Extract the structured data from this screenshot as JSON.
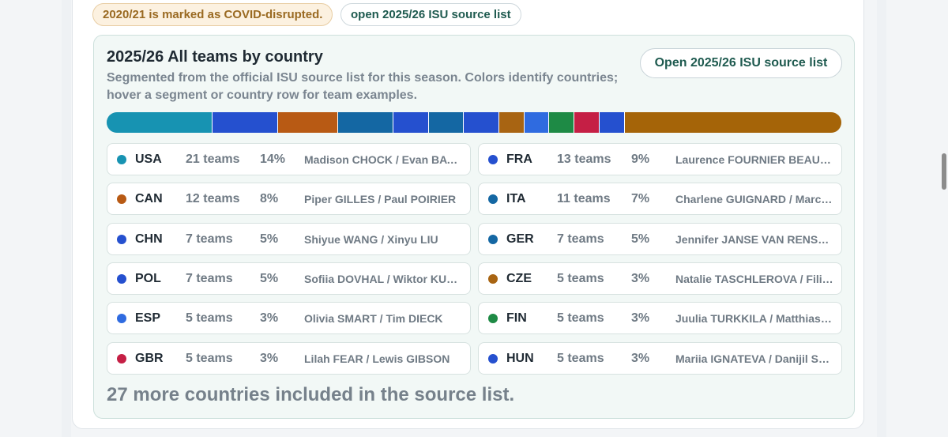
{
  "chips": {
    "covid_note": "2020/21 is marked as COVID-disrupted.",
    "source_link": "open 2025/26 ISU source list"
  },
  "panel": {
    "title": "2025/26 All teams by country",
    "subtitle": "Segmented from the official ISU source list for this season. Colors identify countries; hover a segment or country row for team examples.",
    "button_label": "Open 2025/26 ISU source list",
    "more_note": "27 more countries included in the source list."
  },
  "chart_data": {
    "type": "bar",
    "title": "2025/26 All teams by country",
    "stacked": true,
    "segments": [
      {
        "code": "USA",
        "teams": 21,
        "color": "#1793b2"
      },
      {
        "code": "FRA",
        "teams": 13,
        "color": "#2550cf"
      },
      {
        "code": "CAN",
        "teams": 12,
        "color": "#b85a14"
      },
      {
        "code": "ITA",
        "teams": 11,
        "color": "#1467a3"
      },
      {
        "code": "CHN",
        "teams": 7,
        "color": "#2550cf"
      },
      {
        "code": "GER",
        "teams": 7,
        "color": "#1467a3"
      },
      {
        "code": "POL",
        "teams": 7,
        "color": "#2550cf"
      },
      {
        "code": "CZE",
        "teams": 5,
        "color": "#a86412"
      },
      {
        "code": "ESP",
        "teams": 5,
        "color": "#2f6be0"
      },
      {
        "code": "FIN",
        "teams": 5,
        "color": "#1e8a45"
      },
      {
        "code": "GBR",
        "teams": 5,
        "color": "#c51f45"
      },
      {
        "code": "HUN",
        "teams": 5,
        "color": "#2550cf"
      },
      {
        "code": "Other",
        "teams": 43,
        "color": "#a56408"
      }
    ]
  },
  "rows": [
    {
      "code": "USA",
      "teams": "21 teams",
      "pct": "14%",
      "example": "Madison CHOCK / Evan BATES",
      "color": "#1793b2"
    },
    {
      "code": "FRA",
      "teams": "13 teams",
      "pct": "9%",
      "example": "Laurence FOURNIER BEAUDRY / Guillaume CIZERON",
      "color": "#2550cf"
    },
    {
      "code": "CAN",
      "teams": "12 teams",
      "pct": "8%",
      "example": "Piper GILLES / Paul POIRIER",
      "color": "#b85a14"
    },
    {
      "code": "ITA",
      "teams": "11 teams",
      "pct": "7%",
      "example": "Charlene GUIGNARD / Marco FABBRI",
      "color": "#1467a3"
    },
    {
      "code": "CHN",
      "teams": "7 teams",
      "pct": "5%",
      "example": "Shiyue WANG / Xinyu LIU",
      "color": "#2550cf"
    },
    {
      "code": "GER",
      "teams": "7 teams",
      "pct": "5%",
      "example": "Jennifer JANSE VAN RENSBURG / Benjamin STEFFAN",
      "color": "#1467a3"
    },
    {
      "code": "POL",
      "teams": "7 teams",
      "pct": "5%",
      "example": "Sofiia DOVHAL / Wiktor KULESZA",
      "color": "#2550cf"
    },
    {
      "code": "CZE",
      "teams": "5 teams",
      "pct": "3%",
      "example": "Natalie TASCHLEROVA / Filip TASCHLER",
      "color": "#a86412"
    },
    {
      "code": "ESP",
      "teams": "5 teams",
      "pct": "3%",
      "example": "Olivia SMART / Tim DIECK",
      "color": "#2f6be0"
    },
    {
      "code": "FIN",
      "teams": "5 teams",
      "pct": "3%",
      "example": "Juulia TURKKILA / Matthias VERSLUIS",
      "color": "#1e8a45"
    },
    {
      "code": "GBR",
      "teams": "5 teams",
      "pct": "3%",
      "example": "Lilah FEAR / Lewis GIBSON",
      "color": "#c51f45"
    },
    {
      "code": "HUN",
      "teams": "5 teams",
      "pct": "3%",
      "example": "Mariia IGNATEVA / Danijil SEMKO",
      "color": "#2550cf"
    }
  ]
}
